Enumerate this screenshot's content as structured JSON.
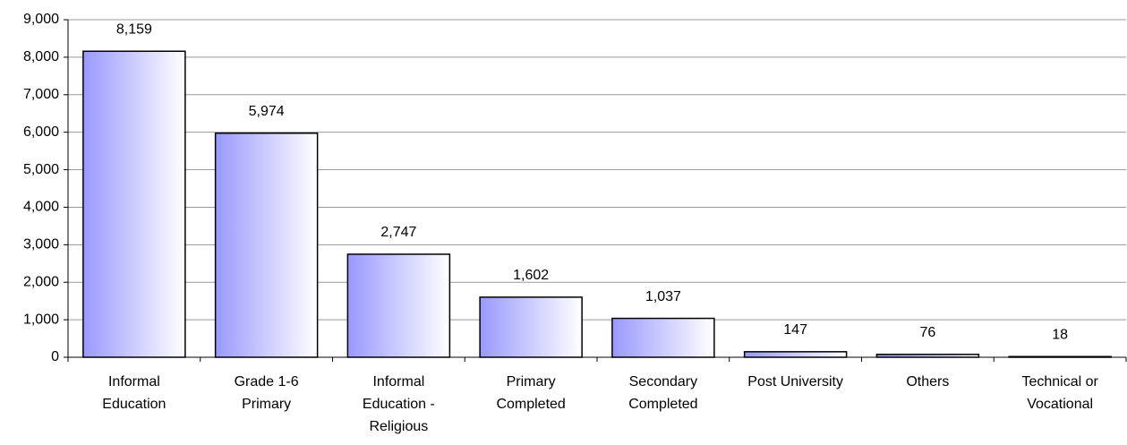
{
  "chart_data": {
    "type": "bar",
    "categories": [
      "Informal\nEducation",
      "Grade 1-6\nPrimary",
      "Informal\nEducation -\nReligious",
      "Primary\nCompleted",
      "Secondary\nCompleted",
      "Post University",
      "Others",
      "Technical or\nVocational"
    ],
    "values": [
      8159,
      5974,
      2747,
      1602,
      1037,
      147,
      76,
      18
    ],
    "value_labels": [
      "8,159",
      "5,974",
      "2,747",
      "1,602",
      "1,037",
      "147",
      "76",
      "18"
    ],
    "color": "#9999ff",
    "ylim": [
      0,
      9000
    ],
    "yticks": [
      0,
      {
        "value": 1000,
        "label": "1,000"
      },
      {
        "value": 2000,
        "label": "2,000"
      },
      {
        "value": 3000,
        "label": "3,000"
      },
      {
        "value": 4000,
        "label": "4,000"
      },
      {
        "value": 5000,
        "label": "5,000"
      },
      {
        "value": 6000,
        "label": "6,000"
      },
      {
        "value": 7000,
        "label": "7,000"
      },
      {
        "value": 8000,
        "label": "8,000"
      },
      {
        "value": 9000,
        "label": "9,000"
      }
    ],
    "grid": true
  }
}
